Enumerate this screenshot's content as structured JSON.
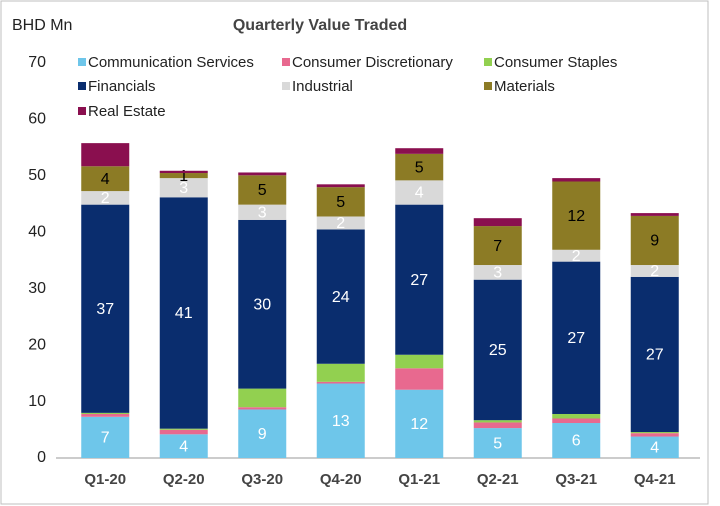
{
  "chart_data": {
    "type": "stacked_bar",
    "title": "Quarterly Value Traded",
    "y_label": "BHD Mn",
    "categories": [
      "Q1-20",
      "Q2-20",
      "Q3-20",
      "Q4-20",
      "Q1-21",
      "Q2-21",
      "Q3-21",
      "Q4-21"
    ],
    "series": [
      {
        "name": "Communication Services",
        "color": "#6ec6ea",
        "values": [
          7.3,
          4.2,
          8.6,
          13.2,
          12.1,
          5.3,
          6.2,
          3.8
        ],
        "value_labels": [
          "7",
          "4",
          "9",
          "13",
          "12",
          "5",
          "6",
          "4"
        ]
      },
      {
        "name": "Consumer Discretionary",
        "color": "#e8698f",
        "values": [
          0.5,
          0.8,
          0.4,
          0.3,
          3.8,
          1.0,
          0.8,
          0.6
        ]
      },
      {
        "name": "Consumer Staples",
        "color": "#92d050",
        "values": [
          0.2,
          0.2,
          3.3,
          3.2,
          2.4,
          0.4,
          0.8,
          0.2
        ]
      },
      {
        "name": "Financials",
        "color": "#0a2d6e",
        "values": [
          36.9,
          41.0,
          29.9,
          23.8,
          26.6,
          24.9,
          27.0,
          27.5
        ],
        "value_labels": [
          "37",
          "41",
          "30",
          "24",
          "27",
          "25",
          "27",
          "27"
        ]
      },
      {
        "name": "Industrial",
        "color": "#d9d9d9",
        "values": [
          2.4,
          3.4,
          2.7,
          2.3,
          4.3,
          2.6,
          2.1,
          2.1
        ],
        "value_labels": [
          "2",
          "3",
          "3",
          "2",
          "4",
          "3",
          "2",
          "2"
        ]
      },
      {
        "name": "Materials",
        "color": "#8c7b25",
        "values": [
          4.4,
          0.9,
          5.2,
          5.2,
          4.7,
          6.9,
          12.1,
          8.7
        ],
        "value_labels": [
          "4",
          "1",
          "5",
          "5",
          "5",
          "7",
          "12",
          "9"
        ]
      },
      {
        "name": "Real Estate",
        "color": "#8a0f4f",
        "values": [
          4.1,
          0.4,
          0.5,
          0.5,
          1.0,
          1.4,
          0.6,
          0.5
        ]
      }
    ],
    "ylim": [
      0,
      70
    ],
    "yticks": [
      0,
      10,
      20,
      30,
      40,
      50,
      60,
      70
    ],
    "grid": false,
    "legend": "top"
  }
}
